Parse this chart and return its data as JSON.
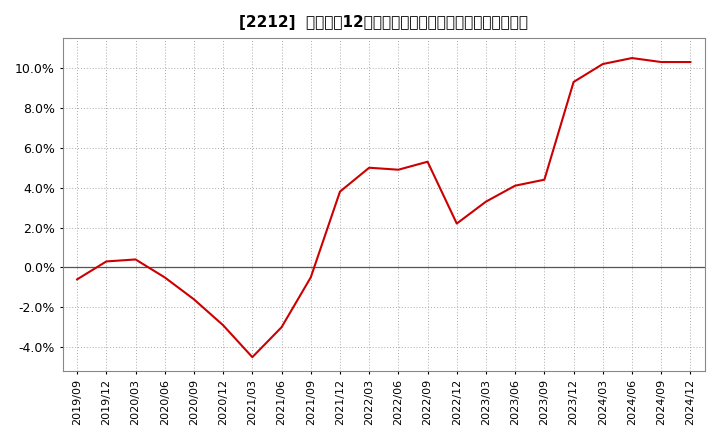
{
  "title": "[2212]  売上高の12か月移動合計の対前年同期増減率の推移",
  "line_color": "#cc0000",
  "background_color": "#ffffff",
  "plot_bg_color": "#ffffff",
  "grid_color": "#aaaaaa",
  "zero_line_color": "#555555",
  "ylim": [
    -0.052,
    0.115
  ],
  "yticks": [
    -0.04,
    -0.02,
    0.0,
    0.02,
    0.04,
    0.06,
    0.08,
    0.1
  ],
  "dates": [
    "2019/09",
    "2019/12",
    "2020/03",
    "2020/06",
    "2020/09",
    "2020/12",
    "2021/03",
    "2021/06",
    "2021/09",
    "2021/12",
    "2022/03",
    "2022/06",
    "2022/09",
    "2022/12",
    "2023/03",
    "2023/06",
    "2023/09",
    "2023/12",
    "2024/03",
    "2024/06",
    "2024/09",
    "2024/12"
  ],
  "values": [
    -0.006,
    0.003,
    0.004,
    -0.005,
    -0.016,
    -0.029,
    -0.045,
    -0.03,
    -0.005,
    0.038,
    0.05,
    0.049,
    0.053,
    0.022,
    0.033,
    0.041,
    0.044,
    0.093,
    0.102,
    0.105,
    0.103,
    0.103
  ],
  "title_fontsize": 11,
  "tick_fontsize": 8,
  "ytick_fontsize": 9
}
